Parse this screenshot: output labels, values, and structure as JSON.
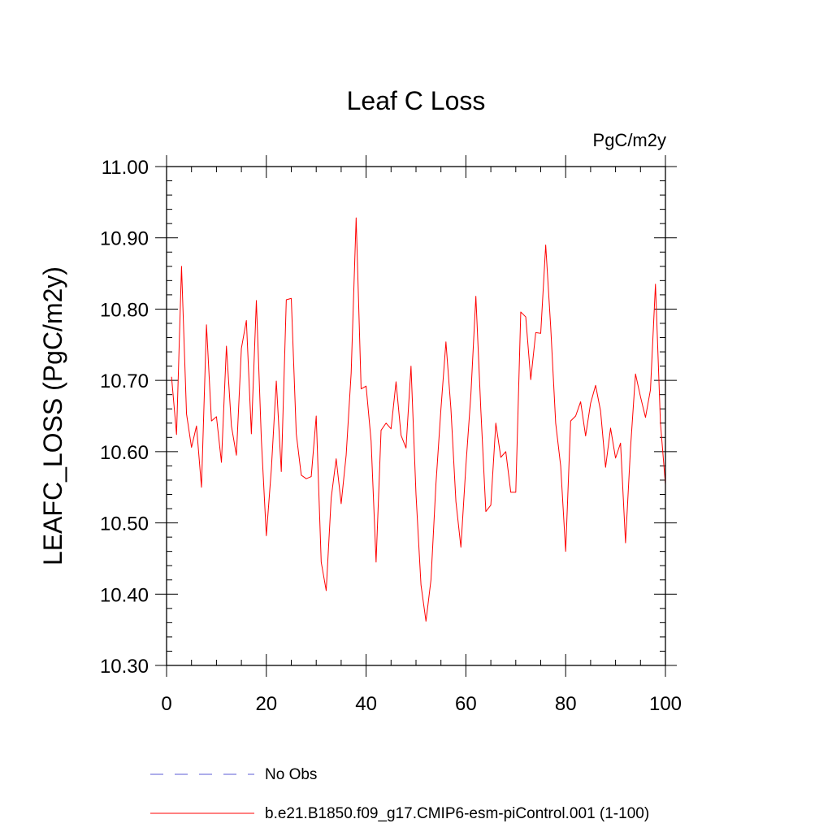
{
  "chart_data": {
    "type": "line",
    "title": "Leaf C Loss",
    "units": "PgC/m2y",
    "xlabel": "",
    "ylabel": "LEAFC_LOSS  (PgC/m2y)",
    "xlim": [
      0,
      100
    ],
    "ylim": [
      10.3,
      11.0
    ],
    "xticks": [
      "0",
      "20",
      "40",
      "60",
      "80",
      "100"
    ],
    "xtick_values": [
      0,
      20,
      40,
      60,
      80,
      100
    ],
    "yticks": [
      "10.30",
      "10.40",
      "10.50",
      "10.60",
      "10.70",
      "10.80",
      "10.90",
      "11.00"
    ],
    "ytick_values": [
      10.3,
      10.4,
      10.5,
      10.6,
      10.7,
      10.8,
      10.9,
      11.0
    ],
    "grid": false,
    "legend_position": "bottom",
    "legend": [
      {
        "name": "No Obs",
        "color": "#5b5bd6",
        "style": "dashed"
      },
      {
        "name": "b.e21.B1850.f09_g17.CMIP6-esm-piControl.001 (1-100)",
        "color": "#ff0000",
        "style": "solid"
      }
    ],
    "series": [
      {
        "name": "b.e21.B1850.f09_g17.CMIP6-esm-piControl.001 (1-100)",
        "color": "#ff0000",
        "x": [
          1,
          2,
          3,
          4,
          5,
          6,
          7,
          8,
          9,
          10,
          11,
          12,
          13,
          14,
          15,
          16,
          17,
          18,
          19,
          20,
          21,
          22,
          23,
          24,
          25,
          26,
          27,
          28,
          29,
          30,
          31,
          32,
          33,
          34,
          35,
          36,
          37,
          38,
          39,
          40,
          41,
          42,
          43,
          44,
          45,
          46,
          47,
          48,
          49,
          50,
          51,
          52,
          53,
          54,
          55,
          56,
          57,
          58,
          59,
          60,
          61,
          62,
          63,
          64,
          65,
          66,
          67,
          68,
          69,
          70,
          71,
          72,
          73,
          74,
          75,
          76,
          77,
          78,
          79,
          80,
          81,
          82,
          83,
          84,
          85,
          86,
          87,
          88,
          89,
          90,
          91,
          92,
          93,
          94,
          95,
          96,
          97,
          98,
          99,
          100
        ],
        "values": [
          10.705,
          10.624,
          10.86,
          10.653,
          10.606,
          10.636,
          10.55,
          10.778,
          10.643,
          10.649,
          10.585,
          10.748,
          10.636,
          10.595,
          10.745,
          10.784,
          10.625,
          10.812,
          10.617,
          10.482,
          10.575,
          10.699,
          10.572,
          10.813,
          10.815,
          10.625,
          10.567,
          10.562,
          10.565,
          10.65,
          10.445,
          10.405,
          10.535,
          10.59,
          10.527,
          10.595,
          10.71,
          10.928,
          10.688,
          10.692,
          10.615,
          10.445,
          10.63,
          10.64,
          10.632,
          10.698,
          10.623,
          10.605,
          10.72,
          10.54,
          10.413,
          10.362,
          10.42,
          10.555,
          10.66,
          10.754,
          10.66,
          10.53,
          10.466,
          10.58,
          10.68,
          10.818,
          10.658,
          10.516,
          10.525,
          10.64,
          10.592,
          10.6,
          10.543,
          10.543,
          10.796,
          10.789,
          10.701,
          10.767,
          10.766,
          10.89,
          10.775,
          10.64,
          10.58,
          10.46,
          10.643,
          10.65,
          10.67,
          10.622,
          10.668,
          10.693,
          10.657,
          10.578,
          10.633,
          10.591,
          10.612,
          10.472,
          10.605,
          10.709,
          10.677,
          10.648,
          10.687,
          10.835,
          10.64,
          10.554
        ]
      }
    ]
  }
}
